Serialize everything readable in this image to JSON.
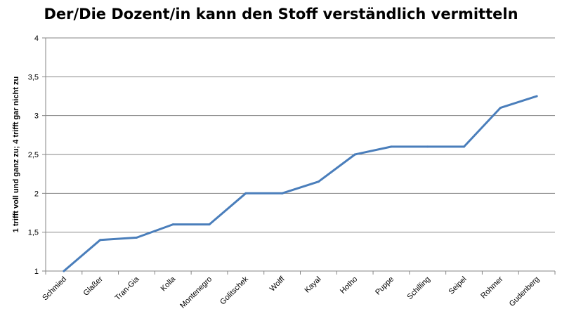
{
  "chart_data": {
    "type": "line",
    "title": "Der/Die Dozent/in kann den Stoff verständlich vermitteln",
    "xlabel": "",
    "ylabel": "1 trifft voll und ganz zu; 4 trifft gar nicht zu",
    "ylim": [
      1,
      4
    ],
    "yticks": [
      1,
      1.5,
      2,
      2.5,
      3,
      3.5,
      4
    ],
    "ytick_labels": [
      "1",
      "1,5",
      "2",
      "2,5",
      "3",
      "3,5",
      "4"
    ],
    "grid": true,
    "legend": "none",
    "categories": [
      "Schmied",
      "Glaßer",
      "Tran-Gia",
      "Kolla",
      "Montenegro",
      "Golitschek",
      "Wolff",
      "Kayal",
      "Hotho",
      "Puppe",
      "Schilling",
      "Seipel",
      "Rohmer",
      "Gudenberg"
    ],
    "series": [
      {
        "values": [
          1.0,
          1.4,
          1.43,
          1.6,
          1.6,
          2.0,
          2.0,
          2.15,
          2.5,
          2.6,
          2.6,
          2.6,
          3.1,
          3.25
        ],
        "color": "#4a7ebb"
      }
    ]
  }
}
